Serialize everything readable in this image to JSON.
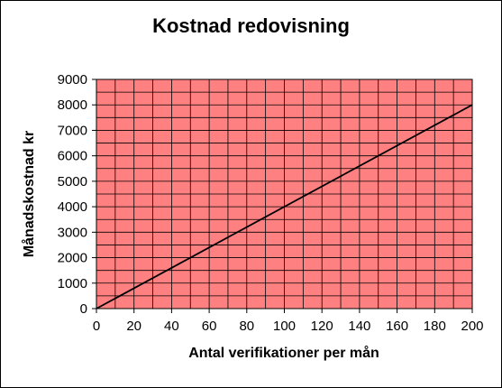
{
  "chart_data": {
    "type": "line",
    "title": "Kostnad redovisning",
    "xlabel": "Antal verifikationer per mån",
    "ylabel": "Månadskostnad kr",
    "xlim": [
      0,
      200
    ],
    "ylim": [
      0,
      9000
    ],
    "x_ticks": [
      "0",
      "20",
      "40",
      "60",
      "80",
      "100",
      "120",
      "140",
      "160",
      "180",
      "200"
    ],
    "y_ticks": [
      "0",
      "1000",
      "2000",
      "3000",
      "4000",
      "5000",
      "6000",
      "7000",
      "8000",
      "9000"
    ],
    "grid": true,
    "series": [
      {
        "x": [
          0,
          200
        ],
        "y": [
          0,
          8000
        ]
      }
    ]
  },
  "colors": {
    "plot_background": "#ff8080",
    "grid": "#000000",
    "line": "#000000"
  }
}
